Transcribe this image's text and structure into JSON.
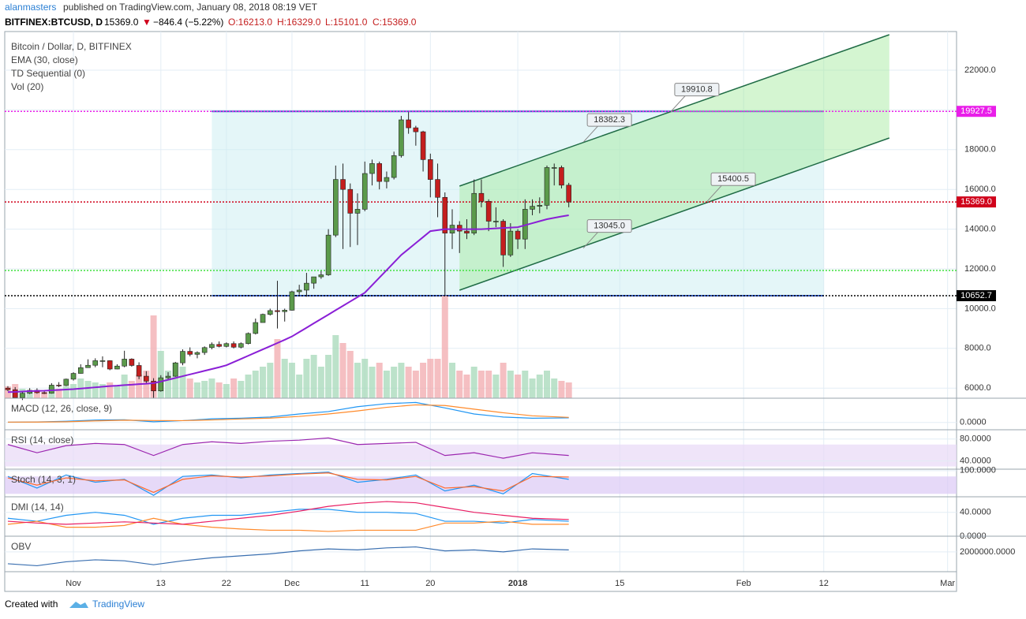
{
  "header": {
    "author": "alanmasters",
    "published": "published on TradingView.com, January 08, 2018 08:19 VET",
    "symbol": "BITFINEX:BTCUSD, D",
    "last": "15369.0",
    "arrow": "▼",
    "change": "−846.4 (−5.22%)",
    "ohlc": [
      "O:16213.0",
      "H:16329.0",
      "L:15101.0",
      "C:15369.0"
    ]
  },
  "chart_data": {
    "type": "candlestick",
    "legend": [
      "Bitcoin / Dollar, D, BITFINEX",
      "EMA (30, close)",
      "TD Sequential (0)",
      "Vol (20)"
    ],
    "xlim": [
      -0.43,
      130.23
    ],
    "xticks": [
      {
        "value": 9,
        "label": "Nov"
      },
      {
        "value": 21,
        "label": "13"
      },
      {
        "value": 30,
        "label": "22"
      },
      {
        "value": 39,
        "label": "Dec"
      },
      {
        "value": 49,
        "label": "11"
      },
      {
        "value": 58,
        "label": "20"
      },
      {
        "value": 70,
        "label": "2018"
      },
      {
        "value": 84,
        "label": "15"
      },
      {
        "value": 101,
        "label": "Feb"
      },
      {
        "value": 112,
        "label": "12"
      },
      {
        "value": 129,
        "label": "Mar"
      }
    ],
    "ylim": [
      5492,
      23944
    ],
    "yticks": [
      {
        "value": 6000,
        "label": "6000.0"
      },
      {
        "value": 8000,
        "label": "8000.0"
      },
      {
        "value": 10000,
        "label": "10000.0"
      },
      {
        "value": 12000,
        "label": "12000.0"
      },
      {
        "value": 14000,
        "label": "14000.0"
      },
      {
        "value": 16000,
        "label": "16000.0"
      },
      {
        "value": 18000,
        "label": "18000.0"
      },
      {
        "value": 20000,
        "label": "20000.0"
      },
      {
        "value": 22000,
        "label": "22000.0"
      }
    ],
    "grid": true,
    "up_color": "#5b9a4b",
    "down_color": "#c41e1e",
    "candles": [
      [
        6000,
        6100,
        5850,
        5920
      ],
      [
        5920,
        6050,
        5480,
        5520
      ],
      [
        5520,
        5800,
        5400,
        5740
      ],
      [
        5740,
        6000,
        5700,
        5890
      ],
      [
        5890,
        5990,
        5720,
        5770
      ],
      [
        5770,
        5850,
        5700,
        5740
      ],
      [
        5740,
        6250,
        5720,
        6150
      ],
      [
        6150,
        6300,
        6050,
        6130
      ],
      [
        6130,
        6480,
        6100,
        6450
      ],
      [
        6450,
        6800,
        6380,
        6740
      ],
      [
        6740,
        7200,
        6730,
        7030
      ],
      [
        7030,
        7450,
        7020,
        7150
      ],
      [
        7150,
        7500,
        7050,
        7380
      ],
      [
        7380,
        7600,
        7050,
        7380
      ],
      [
        7380,
        7400,
        6900,
        6960
      ],
      [
        6960,
        7200,
        6950,
        7110
      ],
      [
        7110,
        7880,
        7050,
        7460
      ],
      [
        7460,
        7500,
        7080,
        7140
      ],
      [
        7140,
        7300,
        6450,
        6600
      ],
      [
        6600,
        6850,
        6250,
        6350
      ],
      [
        6350,
        6500,
        5500,
        5860
      ],
      [
        5860,
        6650,
        5820,
        6520
      ],
      [
        6520,
        6800,
        6450,
        6600
      ],
      [
        6600,
        7320,
        6570,
        7270
      ],
      [
        7270,
        7950,
        7150,
        7850
      ],
      [
        7850,
        8050,
        7600,
        7700
      ],
      [
        7700,
        7850,
        7500,
        7790
      ],
      [
        7790,
        8100,
        7670,
        8040
      ],
      [
        8040,
        8300,
        7950,
        8200
      ],
      [
        8200,
        8350,
        8050,
        8100
      ],
      [
        8100,
        8300,
        8050,
        8240
      ],
      [
        8240,
        8350,
        8000,
        8060
      ],
      [
        8060,
        8300,
        8000,
        8240
      ],
      [
        8240,
        8800,
        8200,
        8750
      ],
      [
        8750,
        9500,
        8700,
        9300
      ],
      [
        9300,
        9750,
        9300,
        9710
      ],
      [
        9710,
        10000,
        9650,
        9900
      ],
      [
        9900,
        11400,
        9000,
        9850
      ],
      [
        9850,
        10000,
        9350,
        9920
      ],
      [
        9920,
        10900,
        9900,
        10850
      ],
      [
        10850,
        11200,
        10700,
        10930
      ],
      [
        10930,
        11800,
        10600,
        11280
      ],
      [
        11280,
        11600,
        11000,
        11600
      ],
      [
        11600,
        11900,
        11500,
        11700
      ],
      [
        11700,
        14000,
        11650,
        13700
      ],
      [
        13700,
        17200,
        13600,
        16500
      ],
      [
        16500,
        17300,
        13000,
        16000
      ],
      [
        16000,
        16300,
        13100,
        14800
      ],
      [
        14800,
        15800,
        13200,
        15000
      ],
      [
        15000,
        17400,
        14900,
        16800
      ],
      [
        16800,
        17500,
        16200,
        17300
      ],
      [
        17300,
        17400,
        16000,
        16400
      ],
      [
        16400,
        16900,
        16050,
        16600
      ],
      [
        16600,
        17900,
        16500,
        17700
      ],
      [
        17700,
        19700,
        17600,
        19500
      ],
      [
        19500,
        19891,
        18800,
        19100
      ],
      [
        19100,
        19200,
        18200,
        18900
      ],
      [
        18900,
        18950,
        16900,
        17500
      ],
      [
        17500,
        17800,
        15600,
        16500
      ],
      [
        16500,
        17300,
        14600,
        15600
      ],
      [
        15600,
        15850,
        10652.7,
        13800
      ],
      [
        13800,
        15000,
        13000,
        14200
      ],
      [
        14200,
        14400,
        12800,
        13900
      ],
      [
        13900,
        14500,
        13500,
        13800
      ],
      [
        13800,
        16500,
        13700,
        15800
      ],
      [
        15800,
        16500,
        15100,
        15400
      ],
      [
        15400,
        15500,
        13900,
        14400
      ],
      [
        14400,
        15100,
        14100,
        14400
      ],
      [
        14400,
        14500,
        12100,
        12700
      ],
      [
        12700,
        14300,
        12600,
        13900
      ],
      [
        13900,
        14000,
        13000,
        13500
      ],
      [
        13500,
        15500,
        13000,
        15000
      ],
      [
        15000,
        15500,
        14700,
        15150
      ],
      [
        15150,
        15600,
        14800,
        15200
      ],
      [
        15200,
        17200,
        15000,
        17100
      ],
      [
        17100,
        17300,
        16200,
        17100
      ],
      [
        17100,
        17200,
        16050,
        16213
      ],
      [
        16213,
        16329,
        15101,
        15369
      ]
    ],
    "volume_ylim": [
      0,
      465
    ],
    "volume": [
      15,
      18,
      12,
      10,
      9,
      8,
      14,
      12,
      15,
      18,
      25,
      22,
      20,
      18,
      20,
      15,
      30,
      22,
      30,
      35,
      105,
      60,
      35,
      45,
      40,
      25,
      20,
      22,
      25,
      20,
      18,
      25,
      22,
      30,
      35,
      40,
      45,
      75,
      50,
      45,
      30,
      50,
      55,
      40,
      55,
      80,
      70,
      60,
      45,
      50,
      40,
      45,
      35,
      40,
      45,
      40,
      35,
      45,
      50,
      50,
      130,
      45,
      35,
      30,
      40,
      35,
      35,
      30,
      45,
      35,
      30,
      35,
      25,
      30,
      35,
      25,
      22,
      20
    ],
    "ema": {
      "color": "#8a1fd6",
      "values": [
        5800,
        5810,
        5830,
        5850,
        5860,
        5870,
        5890,
        5910,
        5930,
        5950,
        5980,
        6010,
        6040,
        6070,
        6100,
        6120,
        6150,
        6170,
        6200,
        6220,
        6250,
        6330,
        6420,
        6510,
        6600,
        6690,
        6780,
        6870,
        6960,
        7050,
        7150,
        7310,
        7470,
        7630,
        7790,
        7950,
        8110,
        8270,
        8430,
        8600,
        8820,
        9040,
        9260,
        9480,
        9700,
        9920,
        10140,
        10360,
        10580,
        10800,
        11180,
        11560,
        11940,
        12320,
        12700,
        13000,
        13300,
        13600,
        13900,
        13950,
        14000,
        14000,
        14000,
        14000,
        14000,
        14000,
        14020,
        14040,
        14060,
        14080,
        14100,
        14200,
        14300,
        14400,
        14500,
        14570,
        14640,
        14700
      ]
    },
    "range_box": {
      "x": [
        28,
        112
      ],
      "y": [
        10652.7,
        19927.5
      ]
    },
    "channel": {
      "x": [
        62,
        121
      ],
      "upper": [
        16167,
        23786
      ],
      "lower": [
        10929,
        18587
      ]
    },
    "price_lines": [
      {
        "value": 19927.5,
        "color": "#e91ee9"
      },
      {
        "value": {
          "value": 15369,
          "label": "15369.0"
        },
        "color": "#d0021b"
      },
      {
        "value": 10652.7,
        "color": "#000000"
      },
      {
        "value": 11921,
        "color": "#3fe03f"
      }
    ],
    "callouts": [
      {
        "x": 91,
        "value": 19910.8
      },
      {
        "x": 79,
        "value": 18382.3
      },
      {
        "x": 96,
        "value": 15400.5
      },
      {
        "x": 79,
        "value": {
          "value": 13045,
          "label": "13045.0"
        }
      }
    ],
    "panels": [
      {
        "title": "MACD (12, 26, close, 9)",
        "ylim": [
          -600,
          2000
        ],
        "yticks": [
          {
            "value": 0,
            "label": "0.0000"
          }
        ],
        "x": [
          0,
          4,
          8,
          12,
          16,
          20,
          24,
          28,
          32,
          36,
          40,
          44,
          48,
          52,
          56,
          60,
          64,
          68,
          72,
          77
        ],
        "series": [
          {
            "color": "#2196f3",
            "values": [
              20,
              40,
              100,
              200,
              220,
              60,
              150,
              300,
              350,
              450,
              700,
              900,
              1300,
              1550,
              1650,
              1200,
              700,
              450,
              350,
              380
            ]
          },
          {
            "color": "#ff8a2b",
            "values": [
              30,
              35,
              60,
              130,
              190,
              160,
              150,
              210,
              290,
              360,
              500,
              700,
              950,
              1250,
              1450,
              1400,
              1100,
              800,
              550,
              420
            ]
          }
        ]
      },
      {
        "title": "RSI (14, close)",
        "ylim": [
          25,
          97
        ],
        "band": [
          30,
          70
        ],
        "band_color": "#e8d9f7",
        "yticks": [
          {
            "value": 80,
            "label": "80.0000"
          },
          {
            "value": 40,
            "label": "40.0000"
          }
        ],
        "x": [
          0,
          4,
          8,
          12,
          16,
          20,
          24,
          28,
          32,
          36,
          40,
          44,
          48,
          52,
          56,
          60,
          64,
          68,
          72,
          77
        ],
        "series": [
          {
            "color": "#9c27b0",
            "values": [
              70,
              55,
              68,
              72,
              70,
              50,
              70,
              75,
              72,
              76,
              78,
              82,
              70,
              72,
              74,
              50,
              55,
              45,
              55,
              50
            ]
          }
        ]
      },
      {
        "title": "Stoch (14, 3, 1)",
        "ylim": [
          10,
          105
        ],
        "band": [
          20,
          80
        ],
        "band_color": "#dcc9f5",
        "yticks": [
          {
            "value": 100,
            "label": "100.0000"
          }
        ],
        "x": [
          0,
          4,
          8,
          12,
          16,
          20,
          24,
          28,
          32,
          36,
          40,
          44,
          48,
          52,
          56,
          60,
          64,
          68,
          72,
          77
        ],
        "series": [
          {
            "color": "#2196f3",
            "values": [
              80,
              40,
              85,
              60,
              70,
              15,
              80,
              85,
              75,
              85,
              90,
              95,
              60,
              70,
              85,
              30,
              50,
              20,
              90,
              70
            ]
          },
          {
            "color": "#ff6a2b",
            "values": [
              75,
              50,
              75,
              65,
              68,
              25,
              70,
              82,
              78,
              82,
              88,
              92,
              70,
              68,
              80,
              40,
              45,
              30,
              80,
              78
            ]
          }
        ]
      },
      {
        "title": "DMI (14, 14)",
        "ylim": [
          0,
          66
        ],
        "yticks": [
          {
            "value": 40,
            "label": "40.0000"
          },
          {
            "value": 0,
            "label": "0.0000"
          }
        ],
        "x": [
          0,
          4,
          8,
          12,
          16,
          20,
          24,
          28,
          32,
          36,
          40,
          44,
          48,
          52,
          56,
          60,
          64,
          68,
          72,
          77
        ],
        "series": [
          {
            "color": "#2196f3",
            "values": [
              30,
              25,
              35,
              40,
              35,
              20,
              30,
              35,
              35,
              40,
              45,
              45,
              40,
              40,
              38,
              25,
              25,
              22,
              28,
              25
            ]
          },
          {
            "color": "#ff8a2b",
            "values": [
              20,
              25,
              15,
              15,
              18,
              30,
              20,
              15,
              12,
              10,
              10,
              8,
              10,
              10,
              10,
              22,
              22,
              25,
              20,
              20
            ]
          },
          {
            "color": "#e91e63",
            "values": [
              25,
              22,
              20,
              22,
              24,
              22,
              20,
              25,
              30,
              35,
              42,
              50,
              55,
              58,
              56,
              48,
              40,
              35,
              30,
              28
            ]
          }
        ]
      },
      {
        "title": "OBV",
        "ylim": [
          0,
          3580000
        ],
        "yticks": [
          {
            "value": 2000000,
            "label": "2000000.0000"
          }
        ],
        "x": [
          0,
          4,
          8,
          12,
          16,
          20,
          24,
          28,
          32,
          36,
          40,
          44,
          48,
          52,
          56,
          60,
          64,
          68,
          72,
          77
        ],
        "series": [
          {
            "color": "#3a6fb0",
            "values": [
              800000,
              600000,
              1000000,
              1200000,
              1100000,
              700000,
              1100000,
              1400000,
              1600000,
              1800000,
              2100000,
              2300000,
              2200000,
              2400000,
              2500000,
              2100000,
              2200000,
              2000000,
              2300000,
              2200000
            ]
          }
        ]
      }
    ]
  },
  "footer": {
    "created": "Created with",
    "brand": "TradingView"
  }
}
